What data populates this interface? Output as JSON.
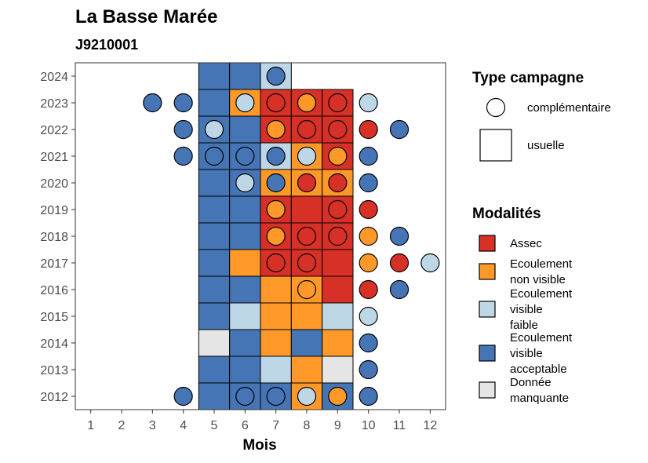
{
  "chart_data": {
    "type": "heatmap",
    "title": "La Basse Marée",
    "subtitle": "J9210001",
    "xlabel": "Mois",
    "ylabel": "",
    "x_ticks": [
      "1",
      "2",
      "3",
      "4",
      "5",
      "6",
      "7",
      "8",
      "9",
      "10",
      "11",
      "12"
    ],
    "y_ticks": [
      "2024",
      "2023",
      "2022",
      "2021",
      "2020",
      "2019",
      "2018",
      "2017",
      "2016",
      "2015",
      "2014",
      "2013",
      "2012"
    ],
    "xlim": [
      0.5,
      12.5
    ],
    "ylim": [
      2011.5,
      2024.5
    ],
    "grid": false,
    "legend_placement": "right",
    "modalites": [
      {
        "key": "assec",
        "lines": [
          "Assec"
        ],
        "color": "#d73027"
      },
      {
        "key": "nonvis",
        "lines": [
          "Ecoulement",
          "non visible"
        ],
        "color": "#fe9929"
      },
      {
        "key": "faible",
        "lines": [
          "Ecoulement",
          "visible",
          "faible"
        ],
        "color": "#bdd7e7"
      },
      {
        "key": "accept",
        "lines": [
          "Ecoulement",
          "visible",
          "acceptable"
        ],
        "color": "#4575b4"
      },
      {
        "key": "nodata",
        "lines": [
          "Donnée",
          "manquante"
        ],
        "color": "#e5e5e5"
      }
    ],
    "type_campagne": {
      "title": "Type campagne",
      "items": [
        {
          "key": "complementaire",
          "label": "complémentaire",
          "shape": "circle"
        },
        {
          "key": "usuelle",
          "label": "usuelle",
          "shape": "square"
        }
      ]
    },
    "modalites_title": "Modalités",
    "usuelle": [
      {
        "year": 2024,
        "values": {
          "5": "accept",
          "6": "accept",
          "7": "faible"
        }
      },
      {
        "year": 2023,
        "values": {
          "5": "accept",
          "6": "nonvis",
          "7": "assec",
          "8": "assec",
          "9": "assec"
        }
      },
      {
        "year": 2022,
        "values": {
          "5": "accept",
          "6": "accept",
          "7": "assec",
          "8": "assec",
          "9": "assec"
        }
      },
      {
        "year": 2021,
        "values": {
          "5": "accept",
          "6": "accept",
          "7": "faible",
          "8": "nonvis",
          "9": "assec"
        }
      },
      {
        "year": 2020,
        "values": {
          "5": "accept",
          "6": "accept",
          "7": "nonvis",
          "8": "nonvis",
          "9": "nonvis"
        }
      },
      {
        "year": 2019,
        "values": {
          "5": "accept",
          "6": "accept",
          "7": "assec",
          "8": "assec",
          "9": "assec"
        }
      },
      {
        "year": 2018,
        "values": {
          "5": "accept",
          "6": "accept",
          "7": "assec",
          "8": "assec",
          "9": "assec"
        }
      },
      {
        "year": 2017,
        "values": {
          "5": "accept",
          "6": "nonvis",
          "7": "assec",
          "8": "assec",
          "9": "assec"
        }
      },
      {
        "year": 2016,
        "values": {
          "5": "accept",
          "6": "accept",
          "7": "nonvis",
          "8": "nonvis",
          "9": "assec"
        }
      },
      {
        "year": 2015,
        "values": {
          "5": "accept",
          "6": "faible",
          "7": "nonvis",
          "8": "nonvis",
          "9": "faible"
        }
      },
      {
        "year": 2014,
        "values": {
          "5": "nodata",
          "6": "accept",
          "7": "nonvis",
          "8": "accept",
          "9": "nonvis"
        }
      },
      {
        "year": 2013,
        "values": {
          "5": "accept",
          "6": "accept",
          "7": "faible",
          "8": "nonvis",
          "9": "nodata"
        }
      },
      {
        "year": 2012,
        "values": {
          "5": "accept",
          "6": "accept",
          "7": "accept",
          "8": "nonvis",
          "9": "accept"
        }
      }
    ],
    "complementaire": [
      {
        "year": 2024,
        "month": 7,
        "value": "accept"
      },
      {
        "year": 2023,
        "month": 3,
        "value": "accept"
      },
      {
        "year": 2023,
        "month": 4,
        "value": "accept"
      },
      {
        "year": 2023,
        "month": 6,
        "value": "faible"
      },
      {
        "year": 2023,
        "month": 7,
        "value": "assec"
      },
      {
        "year": 2023,
        "month": 8,
        "value": "nonvis"
      },
      {
        "year": 2023,
        "month": 9,
        "value": "assec"
      },
      {
        "year": 2023,
        "month": 10,
        "value": "faible"
      },
      {
        "year": 2022,
        "month": 4,
        "value": "accept"
      },
      {
        "year": 2022,
        "month": 5,
        "value": "faible"
      },
      {
        "year": 2022,
        "month": 7,
        "value": "nonvis"
      },
      {
        "year": 2022,
        "month": 8,
        "value": "assec"
      },
      {
        "year": 2022,
        "month": 9,
        "value": "assec"
      },
      {
        "year": 2022,
        "month": 10,
        "value": "assec"
      },
      {
        "year": 2022,
        "month": 11,
        "value": "accept"
      },
      {
        "year": 2021,
        "month": 4,
        "value": "accept"
      },
      {
        "year": 2021,
        "month": 5,
        "value": "accept"
      },
      {
        "year": 2021,
        "month": 6,
        "value": "accept"
      },
      {
        "year": 2021,
        "month": 7,
        "value": "accept"
      },
      {
        "year": 2021,
        "month": 8,
        "value": "faible"
      },
      {
        "year": 2021,
        "month": 9,
        "value": "nonvis"
      },
      {
        "year": 2021,
        "month": 10,
        "value": "accept"
      },
      {
        "year": 2020,
        "month": 6,
        "value": "faible"
      },
      {
        "year": 2020,
        "month": 7,
        "value": "accept"
      },
      {
        "year": 2020,
        "month": 8,
        "value": "assec"
      },
      {
        "year": 2020,
        "month": 9,
        "value": "assec"
      },
      {
        "year": 2020,
        "month": 10,
        "value": "accept"
      },
      {
        "year": 2019,
        "month": 7,
        "value": "nonvis"
      },
      {
        "year": 2019,
        "month": 9,
        "value": "assec"
      },
      {
        "year": 2019,
        "month": 10,
        "value": "assec"
      },
      {
        "year": 2018,
        "month": 7,
        "value": "nonvis"
      },
      {
        "year": 2018,
        "month": 8,
        "value": "assec"
      },
      {
        "year": 2018,
        "month": 9,
        "value": "assec"
      },
      {
        "year": 2018,
        "month": 10,
        "value": "nonvis"
      },
      {
        "year": 2018,
        "month": 11,
        "value": "accept"
      },
      {
        "year": 2017,
        "month": 7,
        "value": "assec"
      },
      {
        "year": 2017,
        "month": 8,
        "value": "assec"
      },
      {
        "year": 2017,
        "month": 10,
        "value": "nonvis"
      },
      {
        "year": 2017,
        "month": 11,
        "value": "assec"
      },
      {
        "year": 2017,
        "month": 12,
        "value": "faible"
      },
      {
        "year": 2016,
        "month": 8,
        "value": "nonvis"
      },
      {
        "year": 2016,
        "month": 10,
        "value": "assec"
      },
      {
        "year": 2016,
        "month": 11,
        "value": "accept"
      },
      {
        "year": 2015,
        "month": 10,
        "value": "faible"
      },
      {
        "year": 2014,
        "month": 10,
        "value": "accept"
      },
      {
        "year": 2013,
        "month": 10,
        "value": "accept"
      },
      {
        "year": 2012,
        "month": 4,
        "value": "accept"
      },
      {
        "year": 2012,
        "month": 6,
        "value": "accept"
      },
      {
        "year": 2012,
        "month": 7,
        "value": "accept"
      },
      {
        "year": 2012,
        "month": 8,
        "value": "faible"
      },
      {
        "year": 2012,
        "month": 9,
        "value": "nonvis"
      },
      {
        "year": 2012,
        "month": 10,
        "value": "accept"
      }
    ]
  }
}
